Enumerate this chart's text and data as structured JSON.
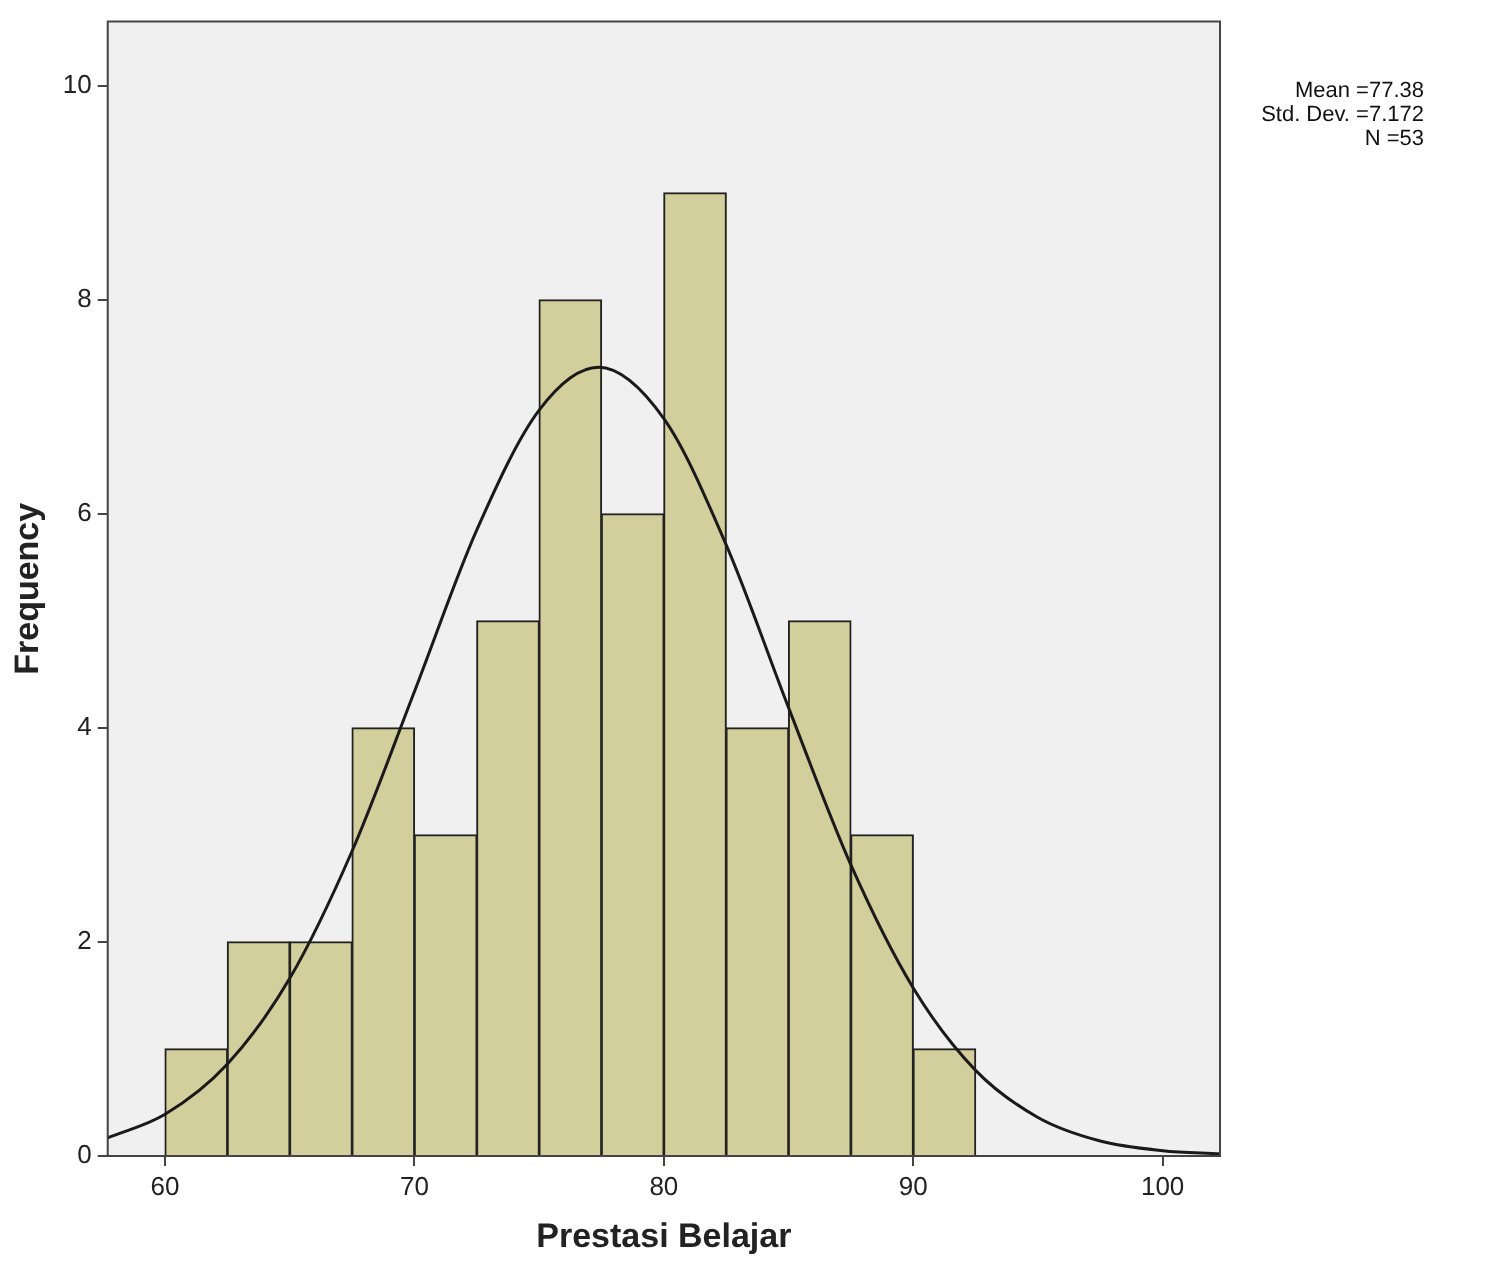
{
  "chart_data": {
    "type": "histogram",
    "xlabel": "Prestasi Belajar",
    "ylabel": "Frequency",
    "bins": [
      60,
      62.5,
      65,
      67.5,
      70,
      72.5,
      75,
      77.5,
      80,
      82.5,
      85,
      87.5,
      90,
      92.5
    ],
    "values": [
      1,
      2,
      2,
      4,
      3,
      5,
      8,
      6,
      9,
      4,
      5,
      3,
      1
    ],
    "color": "#d3cf9c",
    "series": [
      {
        "type": "line",
        "color": "#1a1a1a",
        "x": [
          57.7,
          60,
          62.5,
          65,
          67.5,
          70,
          72.5,
          75,
          77.38,
          80,
          82.5,
          85,
          87.5,
          90,
          92.5,
          95,
          97.5,
          100,
          102.3
        ],
        "values": [
          0.17,
          0.39,
          0.86,
          1.66,
          2.85,
          4.34,
          5.85,
          6.97,
          7.37,
          6.89,
          5.71,
          4.19,
          2.72,
          1.57,
          0.8,
          0.36,
          0.14,
          0.05,
          0.02
        ]
      }
    ],
    "xlim": [
      57.7,
      102.3
    ],
    "xticks": [
      60,
      70,
      80,
      90,
      100
    ],
    "ylim": [
      0,
      10.6
    ],
    "yticks": [
      0,
      2,
      4,
      6,
      8,
      10
    ],
    "grid": false,
    "legend": false,
    "marker": "none",
    "line_style": "solid",
    "annotations": [
      "Mean =77.38",
      "Std. Dev. =7.172",
      "N =53"
    ]
  }
}
